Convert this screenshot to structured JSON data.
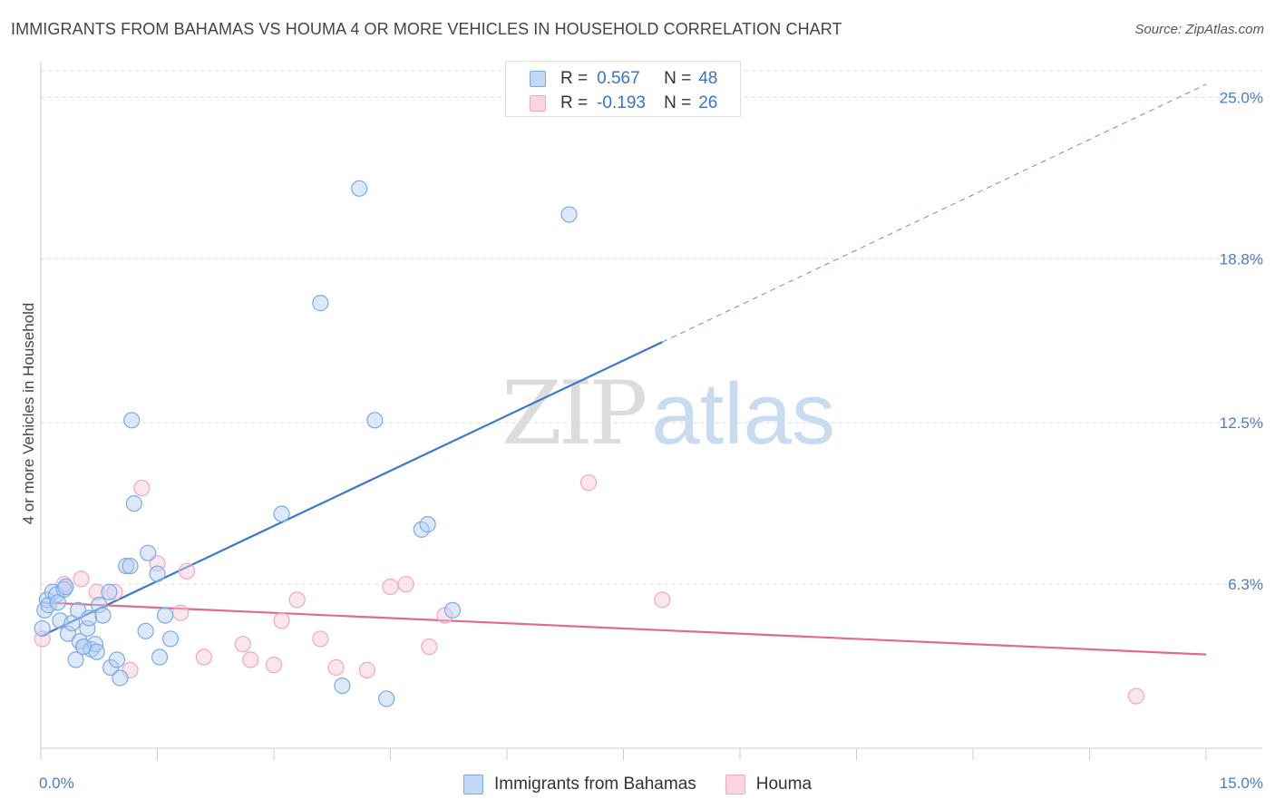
{
  "header": {
    "title": "IMMIGRANTS FROM BAHAMAS VS HOUMA 4 OR MORE VEHICLES IN HOUSEHOLD CORRELATION CHART",
    "source": "Source: ZipAtlas.com"
  },
  "watermark": {
    "zip": "ZIP",
    "atlas": "atlas"
  },
  "legend": {
    "rows": [
      {
        "r_label": "R =",
        "r_value": "0.567",
        "n_label": "N =",
        "n_value": "48",
        "color": "#7aaae8",
        "fill": "#c3d8f5"
      },
      {
        "r_label": "R =",
        "r_value": "-0.193",
        "n_label": "N =",
        "n_value": "26",
        "color": "#f0a8c0",
        "fill": "#fbd5e1"
      }
    ]
  },
  "bottom_legend": {
    "items": [
      {
        "label": "Immigrants from Bahamas"
      },
      {
        "label": "Houma"
      }
    ]
  },
  "chart_data": {
    "type": "scatter",
    "ylabel": "4 or more Vehicles in Household",
    "xlim": [
      0,
      15
    ],
    "ylim": [
      0,
      26.3
    ],
    "x_tick_labels": [
      "0.0%",
      "15.0%"
    ],
    "y_ticks": [
      6.3,
      12.5,
      18.8,
      25.0
    ],
    "y_tick_labels": [
      "6.3%",
      "12.5%",
      "18.8%",
      "25.0%"
    ],
    "grid": true,
    "colors": {
      "blue": "#3a78c9",
      "pink": "#e06a94",
      "blue_point": "#7aaae8",
      "pink_point": "#f0a8c0"
    },
    "series": [
      {
        "name": "Immigrants from Bahamas",
        "color": "#7aaae8",
        "trend": {
          "x0": 0.0,
          "y0": 4.3,
          "x1": 8.0,
          "y1": 15.6,
          "dash_x1": 15.0,
          "dash_y1": 25.5
        },
        "points": [
          [
            0.02,
            4.6
          ],
          [
            0.05,
            5.3
          ],
          [
            0.08,
            5.7
          ],
          [
            0.1,
            5.5
          ],
          [
            0.15,
            6.0
          ],
          [
            0.2,
            5.9
          ],
          [
            0.22,
            5.6
          ],
          [
            0.25,
            4.9
          ],
          [
            0.3,
            6.1
          ],
          [
            0.32,
            6.2
          ],
          [
            0.35,
            4.4
          ],
          [
            0.4,
            4.8
          ],
          [
            0.45,
            3.4
          ],
          [
            0.48,
            5.3
          ],
          [
            0.5,
            4.1
          ],
          [
            0.55,
            3.9
          ],
          [
            0.6,
            4.6
          ],
          [
            0.62,
            5.0
          ],
          [
            0.65,
            3.8
          ],
          [
            0.7,
            4.0
          ],
          [
            0.72,
            3.7
          ],
          [
            0.75,
            5.5
          ],
          [
            0.8,
            5.1
          ],
          [
            0.88,
            6.0
          ],
          [
            0.9,
            3.1
          ],
          [
            0.98,
            3.4
          ],
          [
            1.02,
            2.7
          ],
          [
            1.1,
            7.0
          ],
          [
            1.15,
            7.0
          ],
          [
            1.17,
            12.6
          ],
          [
            1.2,
            9.4
          ],
          [
            1.35,
            4.5
          ],
          [
            1.38,
            7.5
          ],
          [
            1.5,
            6.7
          ],
          [
            1.53,
            3.5
          ],
          [
            1.6,
            5.1
          ],
          [
            1.67,
            4.2
          ],
          [
            3.1,
            9.0
          ],
          [
            3.6,
            17.1
          ],
          [
            3.88,
            2.4
          ],
          [
            4.1,
            21.5
          ],
          [
            4.3,
            12.6
          ],
          [
            4.45,
            1.9
          ],
          [
            4.9,
            8.4
          ],
          [
            4.98,
            8.6
          ],
          [
            5.3,
            5.3
          ],
          [
            6.8,
            20.5
          ],
          [
            0.55,
            3.9
          ]
        ]
      },
      {
        "name": "Houma",
        "color": "#f0a8c0",
        "trend": {
          "x0": 0.0,
          "y0": 5.6,
          "x1": 15.0,
          "y1": 3.6
        },
        "points": [
          [
            0.02,
            4.2
          ],
          [
            0.3,
            6.3
          ],
          [
            0.52,
            6.5
          ],
          [
            0.72,
            6.0
          ],
          [
            0.95,
            6.0
          ],
          [
            1.15,
            3.0
          ],
          [
            1.3,
            10.0
          ],
          [
            1.5,
            7.1
          ],
          [
            1.8,
            5.2
          ],
          [
            1.88,
            6.8
          ],
          [
            2.1,
            3.5
          ],
          [
            2.6,
            4.0
          ],
          [
            2.7,
            3.4
          ],
          [
            3.0,
            3.2
          ],
          [
            3.1,
            4.9
          ],
          [
            3.3,
            5.7
          ],
          [
            3.6,
            4.2
          ],
          [
            3.8,
            3.1
          ],
          [
            4.2,
            3.0
          ],
          [
            4.5,
            6.2
          ],
          [
            4.7,
            6.3
          ],
          [
            5.0,
            3.9
          ],
          [
            5.2,
            5.1
          ],
          [
            7.05,
            10.2
          ],
          [
            8.0,
            5.7
          ],
          [
            14.1,
            2.0
          ]
        ]
      }
    ]
  }
}
